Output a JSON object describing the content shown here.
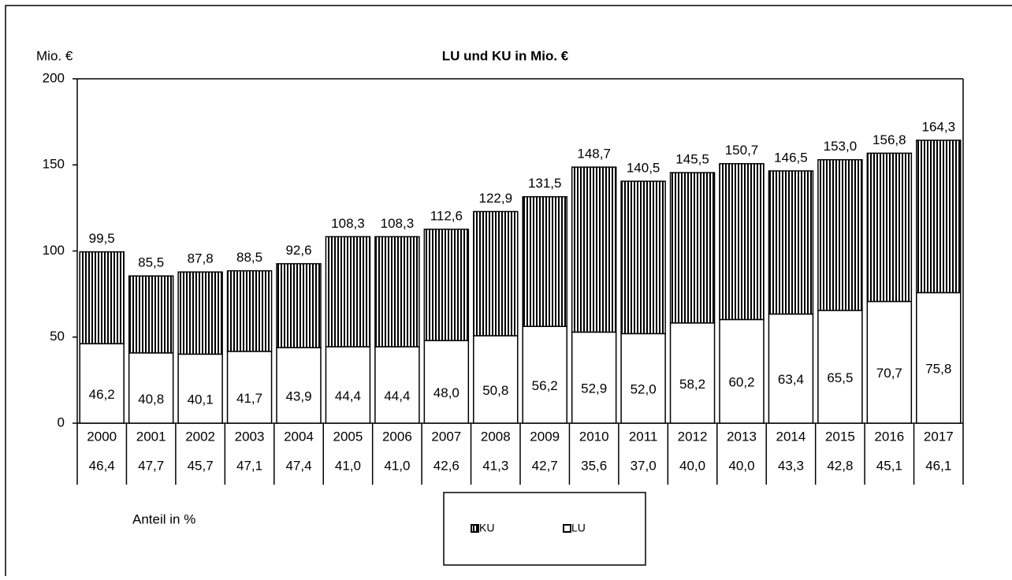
{
  "chart_data": {
    "type": "stacked-bar",
    "title": "LU und KU in Mio. €",
    "y_label": "Mio. €",
    "categories": [
      "2000",
      "2001",
      "2002",
      "2003",
      "2004",
      "2005",
      "2006",
      "2007",
      "2008",
      "2009",
      "2010",
      "2011",
      "2012",
      "2013",
      "2014",
      "2015",
      "2016",
      "2017"
    ],
    "series": [
      {
        "name": "LU",
        "color": "#ffffff",
        "values": [
          46.2,
          40.8,
          40.1,
          41.7,
          43.9,
          44.4,
          44.4,
          48.0,
          50.8,
          56.2,
          52.9,
          52.0,
          58.2,
          60.2,
          63.4,
          65.5,
          70.7,
          75.8
        ],
        "value_labels": [
          "46,2",
          "40,8",
          "40,1",
          "41,7",
          "43,9",
          "44,4",
          "44,4",
          "48,0",
          "50,8",
          "56,2",
          "52,9",
          "52,0",
          "58,2",
          "60,2",
          "63,4",
          "65,5",
          "70,7",
          "75,8"
        ]
      },
      {
        "name": "KU",
        "color": "hatch",
        "values": [
          53.3,
          44.7,
          47.7,
          46.8,
          48.7,
          63.9,
          63.9,
          64.6,
          72.1,
          75.3,
          95.8,
          88.5,
          87.3,
          90.5,
          83.1,
          87.5,
          86.1,
          88.5
        ]
      }
    ],
    "totals": [
      99.5,
      85.5,
      87.8,
      88.5,
      92.6,
      108.3,
      108.3,
      112.6,
      122.9,
      131.5,
      148.7,
      140.5,
      145.5,
      150.7,
      146.5,
      153.0,
      156.8,
      164.3
    ],
    "total_labels": [
      "99,5",
      "85,5",
      "87,8",
      "88,5",
      "92,6",
      "108,3",
      "108,3",
      "112,6",
      "122,9",
      "131,5",
      "148,7",
      "140,5",
      "145,5",
      "150,7",
      "146,5",
      "153,0",
      "156,8",
      "164,3"
    ],
    "share_title": "Anteil in %",
    "shares": [
      "46,4",
      "47,7",
      "45,7",
      "47,1",
      "47,4",
      "41,0",
      "41,0",
      "42,6",
      "41,3",
      "42,7",
      "35,6",
      "37,0",
      "40,0",
      "40,0",
      "43,3",
      "42,8",
      "45,1",
      "46,1"
    ],
    "ylim": [
      0,
      200
    ],
    "yticks": [
      0,
      50,
      100,
      150,
      200
    ],
    "legend": "bottom"
  }
}
